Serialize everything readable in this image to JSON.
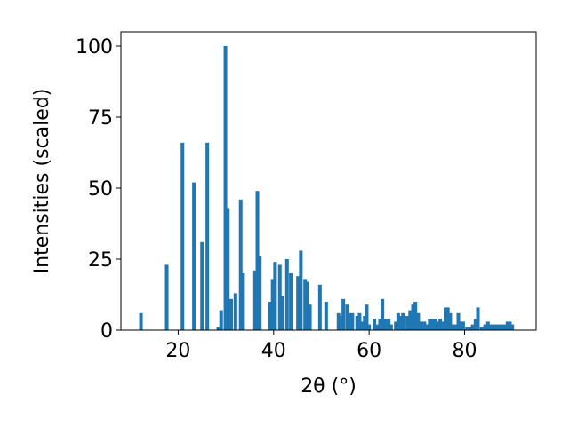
{
  "chart_data": {
    "type": "bar",
    "xlabel": "2θ (°)",
    "ylabel": "Intensities (scaled)",
    "xlim": [
      8,
      95
    ],
    "ylim": [
      0,
      105
    ],
    "x_ticks": [
      20,
      40,
      60,
      80
    ],
    "y_ticks": [
      0,
      25,
      50,
      75,
      100
    ],
    "grid": false,
    "bar_color": "#1f77b4",
    "bar_width": 0.75,
    "x": [
      12.2,
      17.6,
      20.9,
      23.3,
      25.0,
      26.1,
      28.4,
      29.0,
      29.9,
      30.4,
      31.1,
      32.0,
      33.1,
      33.6,
      36.1,
      36.6,
      37.1,
      39.3,
      39.8,
      40.3,
      41.3,
      41.9,
      42.8,
      43.6,
      45.1,
      45.7,
      46.6,
      47.0,
      47.6,
      49.7,
      51.0,
      53.6,
      54.1,
      54.6,
      55.4,
      55.9,
      56.5,
      57.5,
      58.0,
      58.6,
      59.1,
      59.5,
      60.0,
      61.1,
      61.8,
      62.3,
      62.8,
      63.4,
      64.1,
      64.6,
      65.6,
      66.1,
      66.6,
      67.1,
      68.0,
      68.6,
      69.2,
      69.7,
      70.3,
      71.0,
      71.6,
      72.1,
      72.7,
      73.3,
      73.9,
      74.4,
      74.9,
      75.4,
      76.0,
      76.5,
      77.0,
      77.5,
      78.0,
      78.7,
      79.2,
      79.7,
      80.5,
      81.1,
      81.7,
      82.3,
      82.8,
      83.6,
      84.3,
      84.9,
      85.5,
      86.0,
      86.6,
      87.2,
      87.8,
      88.4,
      89.0,
      89.5,
      90.0
    ],
    "values": [
      6,
      23,
      66,
      52,
      31,
      66,
      1,
      7,
      100,
      43,
      11,
      13,
      46,
      20,
      21,
      49,
      26,
      10,
      18,
      24,
      23,
      12,
      25,
      20,
      19,
      28,
      18,
      17,
      9,
      16,
      10,
      6,
      5,
      11,
      9,
      6,
      6,
      5,
      6,
      3,
      5,
      9,
      2,
      4,
      2,
      4,
      11,
      4,
      4,
      2,
      3,
      6,
      5,
      6,
      5,
      7,
      9,
      10,
      6,
      3,
      3,
      2,
      4,
      4,
      4,
      3,
      4,
      3,
      8,
      8,
      6,
      2,
      2,
      6,
      3,
      3,
      1,
      1,
      2,
      4,
      8,
      1,
      2,
      3,
      2,
      2,
      2,
      2,
      2,
      2,
      3,
      3,
      2
    ]
  }
}
